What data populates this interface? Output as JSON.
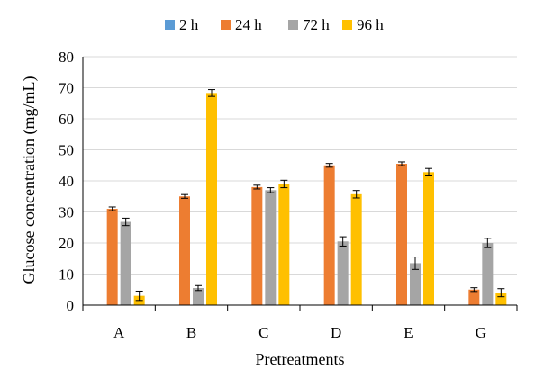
{
  "chart_data": {
    "type": "bar",
    "title": "",
    "xlabel": "Pretreatments",
    "ylabel": "Glucose concentration (mg/mL)",
    "ylim": [
      0,
      80
    ],
    "yticks": [
      "0",
      "10",
      "20",
      "30",
      "40",
      "50",
      "60",
      "70",
      "80"
    ],
    "grid": true,
    "legend_position": "top",
    "categories": [
      "A",
      "B",
      "C",
      "D",
      "E",
      "G"
    ],
    "series": [
      {
        "name": "2 h",
        "color": "#5B9BD5",
        "values": [
          0,
          0,
          0,
          0,
          0,
          0
        ],
        "errors": [
          0,
          0,
          0,
          0,
          0,
          0
        ]
      },
      {
        "name": "24 h",
        "color": "#ED7D31",
        "values": [
          31,
          35,
          38,
          45,
          45.5,
          5
        ],
        "errors": [
          0.6,
          0.6,
          0.6,
          0.6,
          0.6,
          0.6
        ]
      },
      {
        "name": "72 h",
        "color": "#A5A5A5",
        "values": [
          26.8,
          5.5,
          37,
          20.5,
          13.5,
          20
        ],
        "errors": [
          1.2,
          0.8,
          0.8,
          1.5,
          2,
          1.5
        ]
      },
      {
        "name": "96 h",
        "color": "#FFC000",
        "values": [
          3,
          0,
          39,
          35.7,
          42.8,
          4
        ],
        "errors": [
          1.5,
          0,
          1.2,
          1.2,
          1.2,
          1.3
        ]
      }
    ],
    "series_extra": {
      "B_96h": {
        "value": 68.3,
        "error": 1.1
      }
    }
  }
}
